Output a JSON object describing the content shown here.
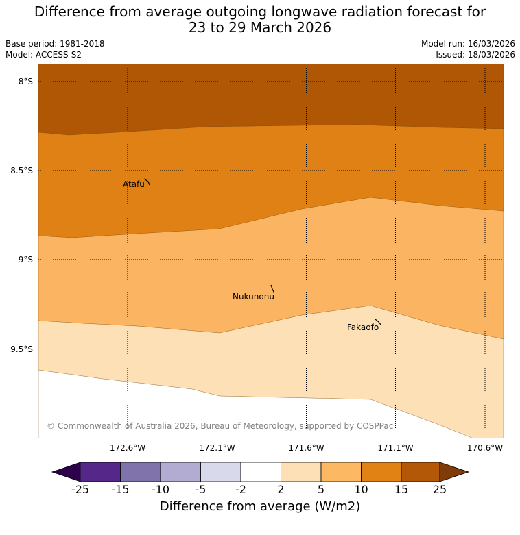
{
  "title": {
    "line1": "Difference from average outgoing longwave radiation forecast for",
    "line2": "23 to 29 March 2026"
  },
  "meta": {
    "base_period": "Base period: 1981-2018",
    "model": "Model: ACCESS-S2",
    "model_run": "Model run: 16/03/2026",
    "issued": "Issued: 18/03/2026"
  },
  "map": {
    "lat_labels": [
      "8°S",
      "8.5°S",
      "9°S",
      "9.5°S"
    ],
    "lon_labels": [
      "172.6°W",
      "172.1°W",
      "171.6°W",
      "171.1°W",
      "170.6°W"
    ],
    "places": [
      {
        "name": "Atafu"
      },
      {
        "name": "Nukunonu"
      },
      {
        "name": "Fakaofo"
      }
    ],
    "copyright": "© Commonwealth of Australia 2026, Bureau of Meteorology, supported by COSPPac",
    "band_colors": {
      "gt15": "#b05705",
      "10to15": "#e08116",
      "5to10": "#fbb562",
      "2to5": "#fde0b6",
      "neutral": "#ffffff"
    }
  },
  "colorbar": {
    "ticks": [
      "-25",
      "-15",
      "-10",
      "-5",
      "-2",
      "2",
      "5",
      "10",
      "15",
      "25"
    ],
    "colors": [
      "#2d004b",
      "#542788",
      "#8073ac",
      "#b2abd2",
      "#d8daeb",
      "#ffffff",
      "#fee0b6",
      "#fdb863",
      "#e08214",
      "#b35806",
      "#7f3b08"
    ],
    "label": "Difference from average (W/m2)"
  }
}
